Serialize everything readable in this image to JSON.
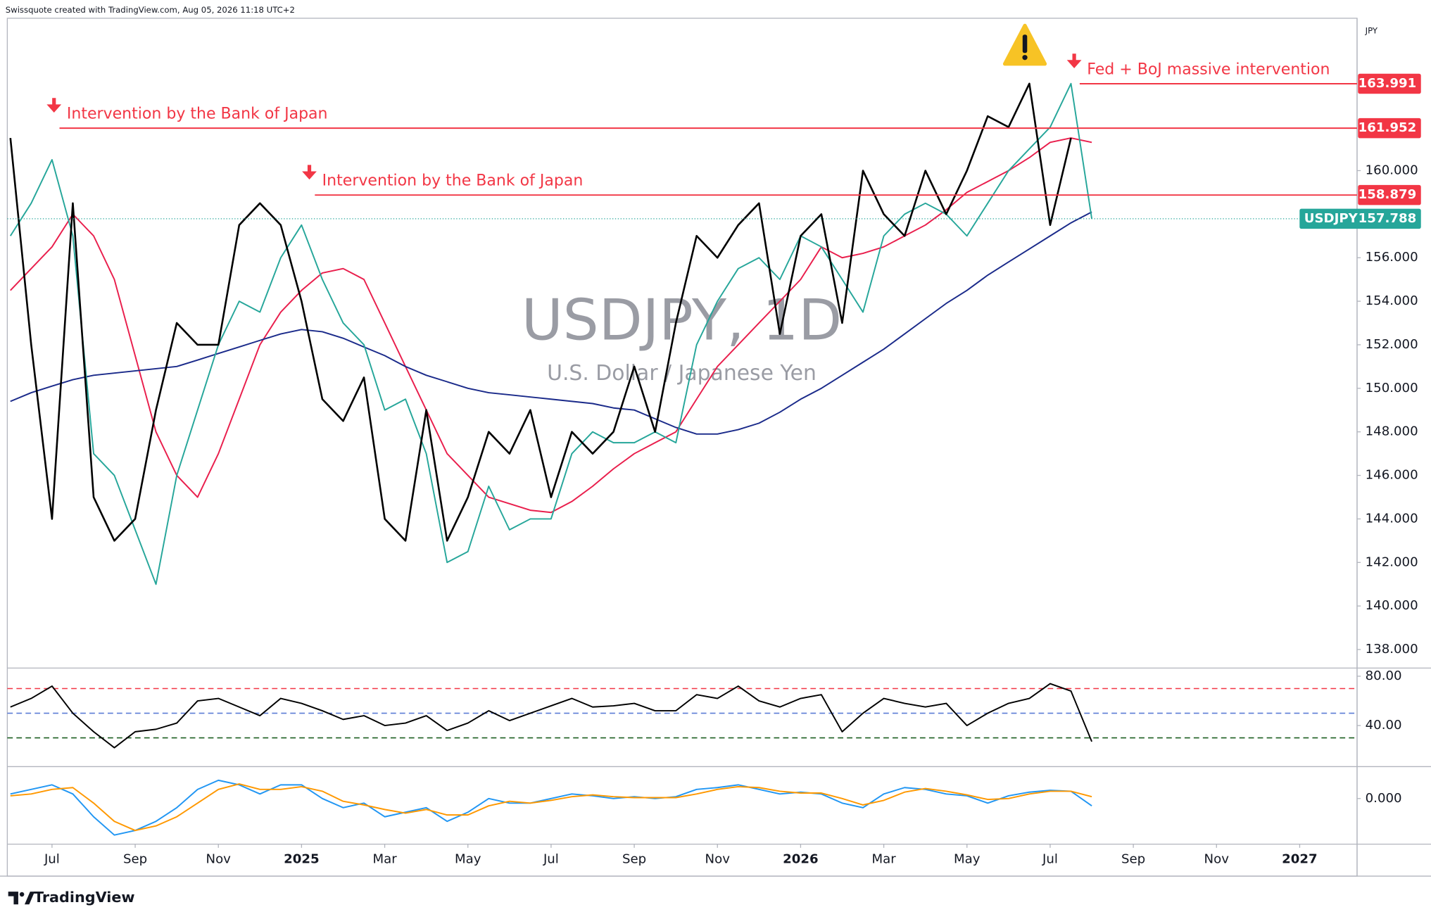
{
  "header": "Swissquote created with TradingView.com, Aug 05, 2026 11:18 UTC+2",
  "footer": "TradingView",
  "chart_data": {
    "type": "line",
    "title": "USDJPY, 1D",
    "subtitle": "U.S. Dollar / Japanese Yen",
    "currency": "JPY",
    "x": [
      -1,
      -0.5,
      0,
      0.5,
      1,
      1.5,
      2,
      2.5,
      3,
      3.5,
      4,
      4.5,
      5,
      5.5,
      6,
      6.5,
      7,
      7.5,
      8,
      8.5,
      9,
      9.5,
      10,
      10.5,
      11,
      11.5,
      12,
      12.5,
      13,
      13.5,
      14,
      14.5,
      15,
      15.5,
      16,
      16.5,
      17,
      17.5,
      18,
      18.5,
      19,
      19.5,
      20,
      20.5,
      21,
      21.5,
      22,
      22.5,
      23,
      23.5,
      24,
      24.5,
      25
    ],
    "xlim": [
      -1.075,
      31.38
    ],
    "xticks": [
      {
        "value": 0,
        "label": "Jul"
      },
      {
        "value": 2,
        "label": "Sep"
      },
      {
        "value": 4,
        "label": "Nov"
      },
      {
        "value": 6,
        "label": "2025"
      },
      {
        "value": 8,
        "label": "Mar"
      },
      {
        "value": 10,
        "label": "May"
      },
      {
        "value": 12,
        "label": "Jul"
      },
      {
        "value": 14,
        "label": "Sep"
      },
      {
        "value": 16,
        "label": "Nov"
      },
      {
        "value": 18,
        "label": "2026"
      },
      {
        "value": 20,
        "label": "Mar"
      },
      {
        "value": 22,
        "label": "May"
      },
      {
        "value": 24,
        "label": "Jul"
      },
      {
        "value": 26,
        "label": "Sep"
      },
      {
        "value": 28,
        "label": "Nov"
      },
      {
        "value": 30,
        "label": "2027"
      }
    ],
    "ylim": [
      137.15,
      167.0
    ],
    "yticks": [
      {
        "value": 138,
        "label": "138.000"
      },
      {
        "value": 140,
        "label": "140.000"
      },
      {
        "value": 142,
        "label": "142.000"
      },
      {
        "value": 144,
        "label": "144.000"
      },
      {
        "value": 146,
        "label": "146.000"
      },
      {
        "value": 148,
        "label": "148.000"
      },
      {
        "value": 150,
        "label": "150.000"
      },
      {
        "value": 152,
        "label": "152.000"
      },
      {
        "value": 154,
        "label": "154.000"
      },
      {
        "value": 156,
        "label": "156.000"
      },
      {
        "value": 160,
        "label": "160.000"
      }
    ],
    "series": [
      {
        "name": "USDJPY",
        "color": "#26a69a",
        "values": [
          157,
          158.5,
          160.5,
          157,
          147,
          146,
          143.5,
          141,
          146,
          149,
          152,
          154,
          153.5,
          156,
          157.5,
          155,
          153,
          152,
          149,
          149.5,
          147,
          142,
          142.5,
          145.5,
          143.5,
          144,
          144,
          147,
          148,
          147.5,
          147.5,
          148,
          147.5,
          152,
          154,
          155.5,
          156,
          155,
          157,
          156.5,
          155,
          153.5,
          157,
          158,
          158.5,
          158,
          157,
          158.5,
          160,
          161,
          162,
          164,
          157.788
        ]
      },
      {
        "color": "#000000",
        "values": [
          161.5,
          152,
          144,
          158.5,
          145,
          143,
          144,
          149,
          153,
          152,
          152,
          157.5,
          158.5,
          157.5,
          154,
          149.5,
          148.5,
          150.5,
          144,
          143,
          149,
          143,
          145,
          148,
          147,
          149,
          145,
          148,
          147,
          148,
          151,
          148,
          153,
          157,
          156,
          157.5,
          158.5,
          152.5,
          157,
          158,
          153,
          160,
          158,
          157,
          160,
          158,
          160,
          162.5,
          162,
          164,
          157.5,
          161.5,
          null
        ]
      },
      {
        "color": "#1a2a8a",
        "values": [
          149.4,
          149.8,
          150.1,
          150.4,
          150.6,
          150.7,
          150.8,
          150.9,
          151,
          151.3,
          151.6,
          151.9,
          152.2,
          152.5,
          152.7,
          152.6,
          152.3,
          151.9,
          151.5,
          151,
          150.6,
          150.3,
          150,
          149.8,
          149.7,
          149.6,
          149.5,
          149.4,
          149.3,
          149.1,
          149,
          148.6,
          148.2,
          147.9,
          147.9,
          148.1,
          148.4,
          148.9,
          149.5,
          150,
          150.6,
          151.2,
          151.8,
          152.5,
          153.2,
          153.9,
          154.5,
          155.2,
          155.8,
          156.4,
          157,
          157.6,
          158.1
        ]
      },
      {
        "color": "#e91e4c",
        "values": [
          154.5,
          155.5,
          156.5,
          158,
          157,
          155,
          151.5,
          148,
          146,
          145,
          147,
          149.5,
          152,
          153.5,
          154.5,
          155.3,
          155.5,
          155,
          153,
          151,
          149,
          147,
          146,
          145,
          144.7,
          144.4,
          144.3,
          144.8,
          145.5,
          146.3,
          147,
          147.5,
          148,
          149.5,
          151,
          152,
          153,
          154,
          155,
          156.5,
          156,
          156.2,
          156.5,
          157,
          157.5,
          158.2,
          159,
          159.5,
          160,
          160.6,
          161.3,
          161.5,
          161.3
        ]
      }
    ],
    "levels": [
      {
        "value": 161.952,
        "start": 0.18,
        "label": "Intervention by the Bank of Japan"
      },
      {
        "value": 158.879,
        "start": 6.32,
        "label": "Intervention by the Bank of Japan"
      },
      {
        "value": 163.991,
        "start": 24.71,
        "label": "Fed + BoJ massive intervention"
      }
    ],
    "level_color": "#f23645",
    "rsi": {
      "ylim": [
        6.7,
        85.9
      ],
      "yticks": [
        {
          "value": 80,
          "label": "80.00"
        },
        {
          "value": 40,
          "label": "40.00"
        }
      ],
      "levels": [
        70,
        50,
        30
      ],
      "level_colors": [
        "#f23645",
        "#5b7bd5",
        "#1b5e20"
      ],
      "color": "#000000",
      "values": [
        55,
        62,
        72,
        50,
        35,
        22,
        35,
        37,
        42,
        60,
        62,
        55,
        48,
        62,
        58,
        52,
        45,
        48,
        40,
        42,
        48,
        36,
        42,
        52,
        44,
        50,
        56,
        62,
        55,
        56,
        58,
        52,
        52,
        65,
        62,
        72,
        60,
        55,
        62,
        65,
        35,
        50,
        62,
        58,
        55,
        58,
        40,
        50,
        58,
        62,
        74,
        68,
        27
      ]
    },
    "macd": {
      "ylim": [
        -5,
        3.4
      ],
      "yticks": [
        {
          "value": 0,
          "label": "0.000"
        }
      ],
      "series": [
        {
          "color": "#2196f3",
          "values": [
            0.5,
            1,
            1.5,
            0.5,
            -2,
            -4,
            -3.5,
            -2.5,
            -1,
            1,
            2,
            1.5,
            0.5,
            1.5,
            1.5,
            0,
            -1,
            -0.5,
            -2,
            -1.5,
            -1,
            -2.5,
            -1.5,
            0,
            -0.5,
            -0.5,
            0,
            0.5,
            0.3,
            0,
            0.2,
            0,
            0.2,
            1,
            1.2,
            1.5,
            1,
            0.5,
            0.7,
            0.5,
            -0.5,
            -1,
            0.5,
            1.2,
            1,
            0.5,
            0.3,
            -0.5,
            0.3,
            0.7,
            0.9,
            0.8,
            -0.8
          ]
        },
        {
          "color": "#ff9800",
          "values": [
            0.3,
            0.5,
            1,
            1.2,
            -0.5,
            -2.5,
            -3.5,
            -3,
            -2,
            -0.5,
            1,
            1.6,
            1,
            1,
            1.3,
            0.8,
            -0.3,
            -0.7,
            -1.2,
            -1.6,
            -1.2,
            -1.8,
            -1.8,
            -0.8,
            -0.3,
            -0.5,
            -0.2,
            0.2,
            0.4,
            0.2,
            0.1,
            0.1,
            0.1,
            0.5,
            1,
            1.3,
            1.2,
            0.8,
            0.6,
            0.6,
            0,
            -0.7,
            -0.2,
            0.7,
            1.1,
            0.8,
            0.4,
            -0.1,
            0,
            0.5,
            0.8,
            0.8,
            0.2
          ]
        }
      ]
    }
  }
}
